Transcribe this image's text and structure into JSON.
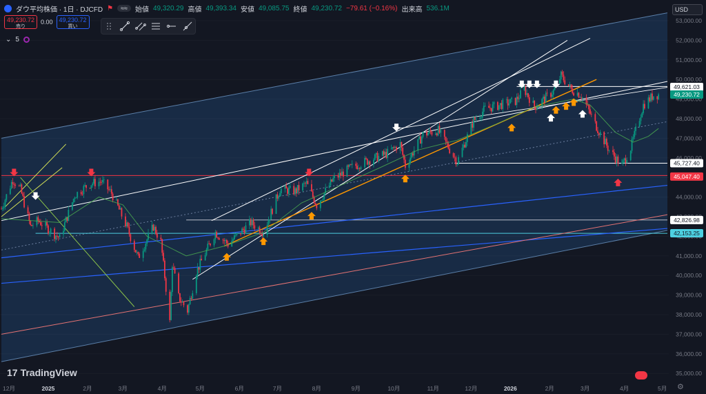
{
  "header": {
    "symbol": "ダウ平均株価 · 1日 · DJCFD",
    "flag": "⚑",
    "pill": "≈≈",
    "open_label": "始値",
    "open": "49,320.29",
    "high_label": "高値",
    "high": "49,393.34",
    "low_label": "安値",
    "low": "49,085.75",
    "close_label": "終値",
    "close": "49,230.72",
    "change": "−79.61 (−0.16%)",
    "volume_label": "出来高",
    "volume": "536.1M"
  },
  "trade": {
    "sell_price": "49,230.72",
    "sell_label": "売り",
    "spread": "0.00",
    "buy_price": "49,230.72",
    "buy_label": "買い"
  },
  "indicators": {
    "toggle": "⌄",
    "count": "5"
  },
  "currency": "USD",
  "brand": {
    "name": "TradingView",
    "mark": "17"
  },
  "axis": {
    "y_ticks": [
      "53,000.00",
      "52,000.00",
      "51,000.00",
      "50,000.00",
      "49,000.00",
      "48,000.00",
      "47,000.00",
      "46,000.00",
      "45,000.00",
      "44,000.00",
      "43,000.00",
      "42,000.00",
      "41,000.00",
      "40,000.00",
      "39,000.00",
      "38,000.00",
      "37,000.00",
      "36,000.00",
      "35,000.00"
    ],
    "x_ticks": [
      "12月",
      "2025",
      "2月",
      "3月",
      "4月",
      "5月",
      "6月",
      "7月",
      "8月",
      "9月",
      "10月",
      "11月",
      "12月",
      "2026",
      "2月",
      "3月",
      "4月",
      "5月"
    ]
  },
  "price_labels": [
    {
      "text": "49,621.03",
      "kind": "white"
    },
    {
      "text": "49,230.72",
      "kind": "current"
    },
    {
      "text": "45,727.40",
      "kind": "white"
    },
    {
      "text": "45,047.40",
      "kind": "red"
    },
    {
      "text": "42,826.98",
      "kind": "white"
    },
    {
      "text": "42,153.25",
      "kind": "cyan"
    }
  ],
  "colors": {
    "background": "#131722",
    "channel_fill": "#1b3352",
    "up": "#089981",
    "down": "#f23645",
    "red_line": "#f23645",
    "cyan_line": "#4dd0e1",
    "orange": "#ff9800",
    "blue": "#2962ff",
    "yellow": "#d4e157",
    "green": "#8bc34a"
  },
  "chart_data": {
    "type": "candlestick",
    "symbol": "DJCFD",
    "interval": "1日",
    "y_range": [
      35000,
      53500
    ],
    "x_range": [
      "2024-11-25",
      "2026-05-05"
    ],
    "last_close": 49230.72,
    "horizontal_levels": [
      {
        "value": 49621.03,
        "color": "white"
      },
      {
        "value": 45727.4,
        "color": "white"
      },
      {
        "value": 45047.4,
        "color": "red"
      },
      {
        "value": 42826.98,
        "color": "white"
      },
      {
        "value": 42153.25,
        "color": "cyan"
      }
    ],
    "price_path": [
      {
        "d": "2024-11-25",
        "v": 43400
      },
      {
        "d": "2024-12-04",
        "v": 44900
      },
      {
        "d": "2024-12-10",
        "v": 44400
      },
      {
        "d": "2024-12-18",
        "v": 42500
      },
      {
        "d": "2024-12-24",
        "v": 42800
      },
      {
        "d": "2025-01-10",
        "v": 41900
      },
      {
        "d": "2025-01-22",
        "v": 44100
      },
      {
        "d": "2025-01-30",
        "v": 44500
      },
      {
        "d": "2025-02-04",
        "v": 44700
      },
      {
        "d": "2025-02-12",
        "v": 44800
      },
      {
        "d": "2025-02-20",
        "v": 44200
      },
      {
        "d": "2025-03-04",
        "v": 42500
      },
      {
        "d": "2025-03-13",
        "v": 40900
      },
      {
        "d": "2025-03-25",
        "v": 42500
      },
      {
        "d": "2025-03-31",
        "v": 41700
      },
      {
        "d": "2025-04-07",
        "v": 37600
      },
      {
        "d": "2025-04-09",
        "v": 40600
      },
      {
        "d": "2025-04-14",
        "v": 38900
      },
      {
        "d": "2025-04-21",
        "v": 38200
      },
      {
        "d": "2025-04-28",
        "v": 40200
      },
      {
        "d": "2025-05-13",
        "v": 42200
      },
      {
        "d": "2025-05-23",
        "v": 41600
      },
      {
        "d": "2025-06-10",
        "v": 42700
      },
      {
        "d": "2025-06-20",
        "v": 42200
      },
      {
        "d": "2025-07-03",
        "v": 44400
      },
      {
        "d": "2025-07-15",
        "v": 44300
      },
      {
        "d": "2025-07-24",
        "v": 44700
      },
      {
        "d": "2025-08-01",
        "v": 43600
      },
      {
        "d": "2025-08-14",
        "v": 44900
      },
      {
        "d": "2025-08-28",
        "v": 45500
      },
      {
        "d": "2025-09-12",
        "v": 45900
      },
      {
        "d": "2025-09-25",
        "v": 46200
      },
      {
        "d": "2025-10-06",
        "v": 46700
      },
      {
        "d": "2025-10-10",
        "v": 45600
      },
      {
        "d": "2025-10-24",
        "v": 47200
      },
      {
        "d": "2025-11-05",
        "v": 47400
      },
      {
        "d": "2025-11-20",
        "v": 45800
      },
      {
        "d": "2025-12-03",
        "v": 47900
      },
      {
        "d": "2025-12-12",
        "v": 48500
      },
      {
        "d": "2025-12-24",
        "v": 48700
      },
      {
        "d": "2026-01-05",
        "v": 48900
      },
      {
        "d": "2026-01-12",
        "v": 49500
      },
      {
        "d": "2026-01-20",
        "v": 48600
      },
      {
        "d": "2026-02-04",
        "v": 49400
      },
      {
        "d": "2026-02-10",
        "v": 50200
      },
      {
        "d": "2026-02-18",
        "v": 49500
      },
      {
        "d": "2026-02-26",
        "v": 49200
      },
      {
        "d": "2026-03-10",
        "v": 47600
      },
      {
        "d": "2026-03-20",
        "v": 46400
      },
      {
        "d": "2026-03-30",
        "v": 45600
      },
      {
        "d": "2026-04-06",
        "v": 46500
      },
      {
        "d": "2026-04-16",
        "v": 48700
      },
      {
        "d": "2026-04-24",
        "v": 49200
      },
      {
        "d": "2026-04-28",
        "v": 49230
      }
    ],
    "ma_path": [
      {
        "d": "2024-11-25",
        "v": 42900
      },
      {
        "d": "2025-01-10",
        "v": 42700
      },
      {
        "d": "2025-02-10",
        "v": 44000
      },
      {
        "d": "2025-03-01",
        "v": 43600
      },
      {
        "d": "2025-03-20",
        "v": 42000
      },
      {
        "d": "2025-04-20",
        "v": 41000
      },
      {
        "d": "2025-05-20",
        "v": 41500
      },
      {
        "d": "2025-06-20",
        "v": 42200
      },
      {
        "d": "2025-07-20",
        "v": 43700
      },
      {
        "d": "2025-08-20",
        "v": 44600
      },
      {
        "d": "2025-09-20",
        "v": 45500
      },
      {
        "d": "2025-10-20",
        "v": 46400
      },
      {
        "d": "2025-11-20",
        "v": 46900
      },
      {
        "d": "2025-12-20",
        "v": 47700
      },
      {
        "d": "2026-01-20",
        "v": 48600
      },
      {
        "d": "2026-02-20",
        "v": 49000
      },
      {
        "d": "2026-03-05",
        "v": 48700
      },
      {
        "d": "2026-03-25",
        "v": 47300
      },
      {
        "d": "2026-04-08",
        "v": 46800
      },
      {
        "d": "2026-04-20",
        "v": 47100
      },
      {
        "d": "2026-04-28",
        "v": 47500
      }
    ],
    "arrows": [
      {
        "d": "2024-12-05",
        "v": 45200,
        "dir": "down",
        "color": "red"
      },
      {
        "d": "2024-12-22",
        "v": 44000,
        "dir": "down",
        "color": "white"
      },
      {
        "d": "2025-02-04",
        "v": 45200,
        "dir": "down",
        "color": "red"
      },
      {
        "d": "2025-05-22",
        "v": 41000,
        "dir": "up",
        "color": "orange"
      },
      {
        "d": "2025-06-20",
        "v": 41800,
        "dir": "up",
        "color": "orange"
      },
      {
        "d": "2025-07-28",
        "v": 43100,
        "dir": "up",
        "color": "orange"
      },
      {
        "d": "2025-07-26",
        "v": 45200,
        "dir": "down",
        "color": "red"
      },
      {
        "d": "2025-10-03",
        "v": 47500,
        "dir": "down",
        "color": "white"
      },
      {
        "d": "2025-10-10",
        "v": 45000,
        "dir": "up",
        "color": "orange"
      },
      {
        "d": "2026-01-02",
        "v": 47600,
        "dir": "up",
        "color": "orange"
      },
      {
        "d": "2026-01-10",
        "v": 49700,
        "dir": "down",
        "color": "white"
      },
      {
        "d": "2026-01-16",
        "v": 49700,
        "dir": "down",
        "color": "white"
      },
      {
        "d": "2026-01-22",
        "v": 49700,
        "dir": "down",
        "color": "white"
      },
      {
        "d": "2026-02-02",
        "v": 48100,
        "dir": "up",
        "color": "white"
      },
      {
        "d": "2026-02-06",
        "v": 48500,
        "dir": "up",
        "color": "orange"
      },
      {
        "d": "2026-02-06",
        "v": 49700,
        "dir": "down",
        "color": "white"
      },
      {
        "d": "2026-02-14",
        "v": 48700,
        "dir": "up",
        "color": "orange"
      },
      {
        "d": "2026-02-20",
        "v": 48900,
        "dir": "up",
        "color": "orange"
      },
      {
        "d": "2026-02-27",
        "v": 48300,
        "dir": "up",
        "color": "white"
      },
      {
        "d": "2026-03-27",
        "v": 44800,
        "dir": "up",
        "color": "red"
      }
    ]
  }
}
